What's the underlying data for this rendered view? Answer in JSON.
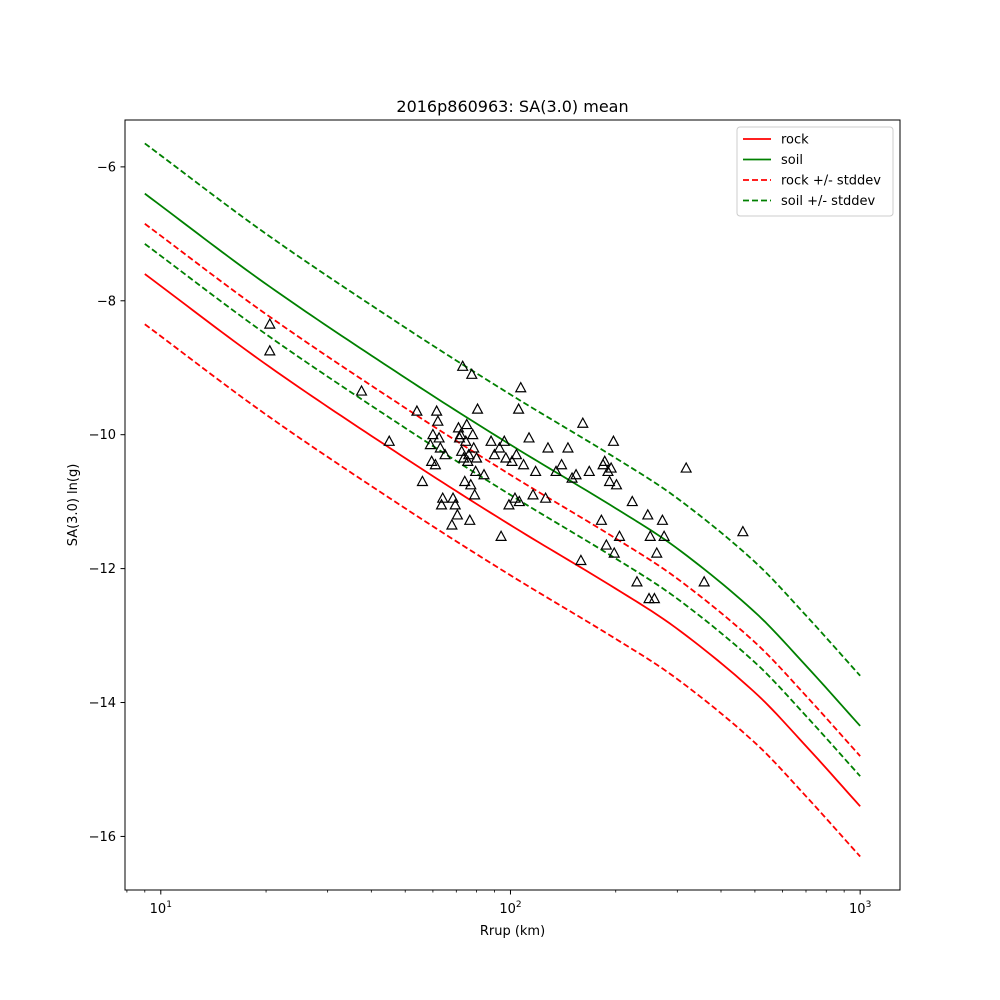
{
  "chart_data": {
    "type": "line",
    "title": "2016p860963: SA(3.0) mean",
    "xlabel": "Rrup (km)",
    "ylabel": "SA(3.0) ln(g)",
    "x_scale": "log",
    "xlim": [
      7.9,
      1300
    ],
    "ylim": [
      -16.8,
      -5.3
    ],
    "x_ticks": [
      {
        "value": 10,
        "base": "10",
        "exp": "1"
      },
      {
        "value": 100,
        "base": "10",
        "exp": "2"
      },
      {
        "value": 1000,
        "base": "10",
        "exp": "3"
      }
    ],
    "y_ticks": [
      {
        "value": -6,
        "label": "−6"
      },
      {
        "value": -8,
        "label": "−8"
      },
      {
        "value": -10,
        "label": "−10"
      },
      {
        "value": -12,
        "label": "−12"
      },
      {
        "value": -14,
        "label": "−14"
      },
      {
        "value": -16,
        "label": "−16"
      }
    ],
    "grid": false,
    "legend_position": "top-right",
    "series": [
      {
        "name": "rock",
        "color": "#ff0000",
        "style": "solid",
        "legend": true,
        "x": [
          9,
          20,
          50,
          100,
          200,
          300,
          500,
          700,
          1000
        ],
        "y": [
          -7.6,
          -8.95,
          -10.35,
          -11.35,
          -12.3,
          -12.9,
          -13.85,
          -14.65,
          -15.55
        ]
      },
      {
        "name": "soil",
        "color": "#008000",
        "style": "solid",
        "legend": true,
        "x": [
          9,
          20,
          50,
          100,
          200,
          300,
          500,
          700,
          1000
        ],
        "y": [
          -6.4,
          -7.75,
          -9.15,
          -10.15,
          -11.1,
          -11.7,
          -12.65,
          -13.45,
          -14.35
        ]
      },
      {
        "name": "rock +/- stddev",
        "color": "#ff0000",
        "style": "dashed",
        "legend": true,
        "x": [
          9,
          20,
          50,
          100,
          200,
          300,
          500,
          700,
          1000
        ],
        "y": [
          -6.85,
          -8.2,
          -9.6,
          -10.6,
          -11.55,
          -12.15,
          -13.1,
          -13.9,
          -14.8
        ]
      },
      {
        "name": "",
        "color": "#ff0000",
        "style": "dashed",
        "legend": false,
        "x": [
          9,
          20,
          50,
          100,
          200,
          300,
          500,
          700,
          1000
        ],
        "y": [
          -8.35,
          -9.7,
          -11.1,
          -12.1,
          -13.05,
          -13.65,
          -14.6,
          -15.4,
          -16.3
        ]
      },
      {
        "name": "soil +/- stddev",
        "color": "#008000",
        "style": "dashed",
        "legend": true,
        "x": [
          9,
          20,
          50,
          100,
          200,
          300,
          500,
          700,
          1000
        ],
        "y": [
          -5.65,
          -7.0,
          -8.4,
          -9.4,
          -10.35,
          -10.95,
          -11.9,
          -12.7,
          -13.6
        ]
      },
      {
        "name": "",
        "color": "#008000",
        "style": "dashed",
        "legend": false,
        "x": [
          9,
          20,
          50,
          100,
          200,
          300,
          500,
          700,
          1000
        ],
        "y": [
          -7.15,
          -8.5,
          -9.9,
          -10.9,
          -11.85,
          -12.45,
          -13.4,
          -14.2,
          -15.1
        ]
      }
    ],
    "observations": {
      "marker": "open-triangle",
      "color": "#000000",
      "points": [
        {
          "x": 20.5,
          "y": -8.35
        },
        {
          "x": 20.5,
          "y": -8.75
        },
        {
          "x": 37.5,
          "y": -9.35
        },
        {
          "x": 45,
          "y": -10.1
        },
        {
          "x": 54,
          "y": -9.65
        },
        {
          "x": 56,
          "y": -10.7
        },
        {
          "x": 59,
          "y": -10.15
        },
        {
          "x": 59.5,
          "y": -10.4
        },
        {
          "x": 60,
          "y": -10.0
        },
        {
          "x": 61,
          "y": -10.45
        },
        {
          "x": 61.5,
          "y": -9.65
        },
        {
          "x": 62,
          "y": -9.8
        },
        {
          "x": 62.5,
          "y": -10.05
        },
        {
          "x": 63,
          "y": -10.2
        },
        {
          "x": 63.5,
          "y": -11.05
        },
        {
          "x": 64,
          "y": -10.95
        },
        {
          "x": 65,
          "y": -10.3
        },
        {
          "x": 68,
          "y": -11.35
        },
        {
          "x": 68.5,
          "y": -10.95
        },
        {
          "x": 69.5,
          "y": -11.05
        },
        {
          "x": 70.5,
          "y": -11.2
        },
        {
          "x": 71,
          "y": -9.9
        },
        {
          "x": 71.5,
          "y": -10.05
        },
        {
          "x": 72,
          "y": -10.0
        },
        {
          "x": 72.5,
          "y": -10.25
        },
        {
          "x": 73,
          "y": -8.98
        },
        {
          "x": 73.5,
          "y": -10.35
        },
        {
          "x": 74,
          "y": -10.7
        },
        {
          "x": 74.5,
          "y": -10.1
        },
        {
          "x": 75,
          "y": -9.85
        },
        {
          "x": 75.5,
          "y": -10.4
        },
        {
          "x": 76,
          "y": -10.3
        },
        {
          "x": 76.5,
          "y": -11.28
        },
        {
          "x": 77,
          "y": -10.75
        },
        {
          "x": 77.5,
          "y": -9.1
        },
        {
          "x": 78,
          "y": -10.0
        },
        {
          "x": 78.5,
          "y": -10.2
        },
        {
          "x": 79,
          "y": -10.9
        },
        {
          "x": 79.5,
          "y": -10.55
        },
        {
          "x": 80,
          "y": -10.35
        },
        {
          "x": 80.5,
          "y": -9.62
        },
        {
          "x": 84,
          "y": -10.6
        },
        {
          "x": 88,
          "y": -10.1
        },
        {
          "x": 90,
          "y": -10.3
        },
        {
          "x": 93,
          "y": -10.2
        },
        {
          "x": 94,
          "y": -11.52
        },
        {
          "x": 96,
          "y": -10.1
        },
        {
          "x": 97,
          "y": -10.35
        },
        {
          "x": 99,
          "y": -11.05
        },
        {
          "x": 101,
          "y": -10.4
        },
        {
          "x": 103,
          "y": -10.95
        },
        {
          "x": 104,
          "y": -10.3
        },
        {
          "x": 105.5,
          "y": -9.62
        },
        {
          "x": 106,
          "y": -11.0
        },
        {
          "x": 107,
          "y": -9.3
        },
        {
          "x": 109,
          "y": -10.45
        },
        {
          "x": 113,
          "y": -10.05
        },
        {
          "x": 116,
          "y": -10.9
        },
        {
          "x": 118,
          "y": -10.55
        },
        {
          "x": 126,
          "y": -10.95
        },
        {
          "x": 128,
          "y": -10.2
        },
        {
          "x": 135,
          "y": -10.55
        },
        {
          "x": 140,
          "y": -10.45
        },
        {
          "x": 146,
          "y": -10.2
        },
        {
          "x": 150,
          "y": -10.65
        },
        {
          "x": 154,
          "y": -10.6
        },
        {
          "x": 159,
          "y": -11.88
        },
        {
          "x": 161,
          "y": -9.83
        },
        {
          "x": 168,
          "y": -10.55
        },
        {
          "x": 182,
          "y": -11.28
        },
        {
          "x": 184,
          "y": -10.45
        },
        {
          "x": 186,
          "y": -10.4
        },
        {
          "x": 188,
          "y": -11.65
        },
        {
          "x": 190,
          "y": -10.55
        },
        {
          "x": 192,
          "y": -10.7
        },
        {
          "x": 194,
          "y": -10.5
        },
        {
          "x": 197,
          "y": -10.1
        },
        {
          "x": 198,
          "y": -11.77
        },
        {
          "x": 201,
          "y": -10.75
        },
        {
          "x": 205,
          "y": -11.52
        },
        {
          "x": 223,
          "y": -11.0
        },
        {
          "x": 230,
          "y": -12.2
        },
        {
          "x": 247,
          "y": -11.2
        },
        {
          "x": 249,
          "y": -12.45
        },
        {
          "x": 251,
          "y": -11.52
        },
        {
          "x": 258,
          "y": -12.45
        },
        {
          "x": 262,
          "y": -11.77
        },
        {
          "x": 272,
          "y": -11.28
        },
        {
          "x": 275,
          "y": -11.52
        },
        {
          "x": 318,
          "y": -10.5
        },
        {
          "x": 358,
          "y": -12.2
        },
        {
          "x": 462,
          "y": -11.45
        }
      ]
    }
  }
}
